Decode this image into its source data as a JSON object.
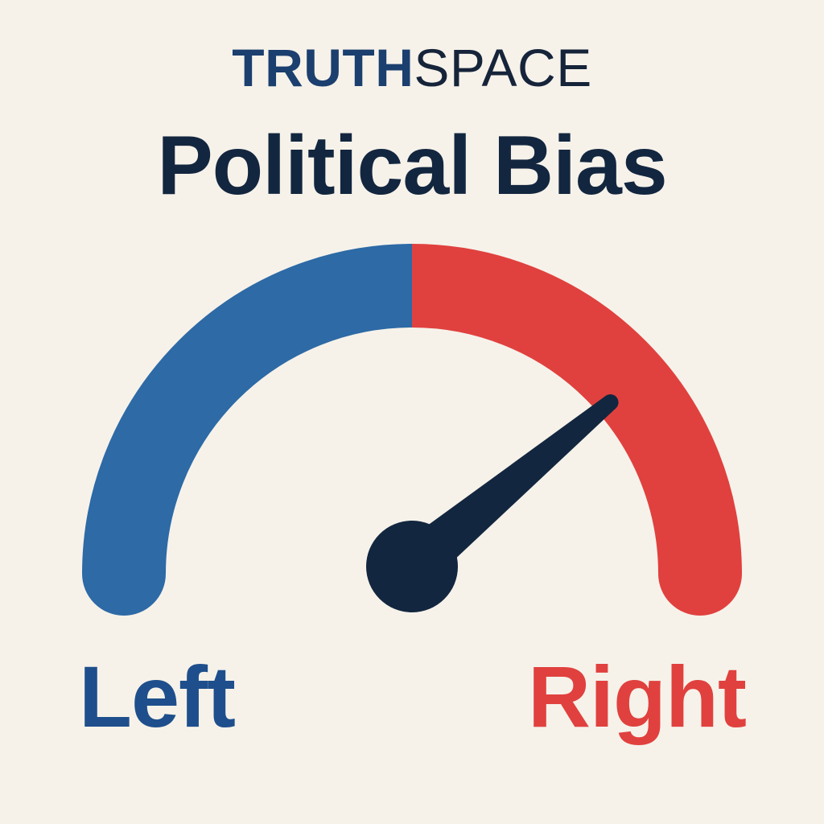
{
  "brand": {
    "part_bold": "TRUTH",
    "part_light": "SPACE"
  },
  "title": "Political Bias",
  "gauge": {
    "left_label": "Left",
    "right_label": "Right",
    "left_color": "#2D6AA6",
    "right_color": "#E0413E",
    "needle_color": "#13263F",
    "needle_position": 0.78,
    "needle_position_note": "0 = fully left, 1 = fully right"
  },
  "colors": {
    "background": "#F6F2EA",
    "left_text": "#1E4F8C",
    "right_text": "#E0413E"
  }
}
